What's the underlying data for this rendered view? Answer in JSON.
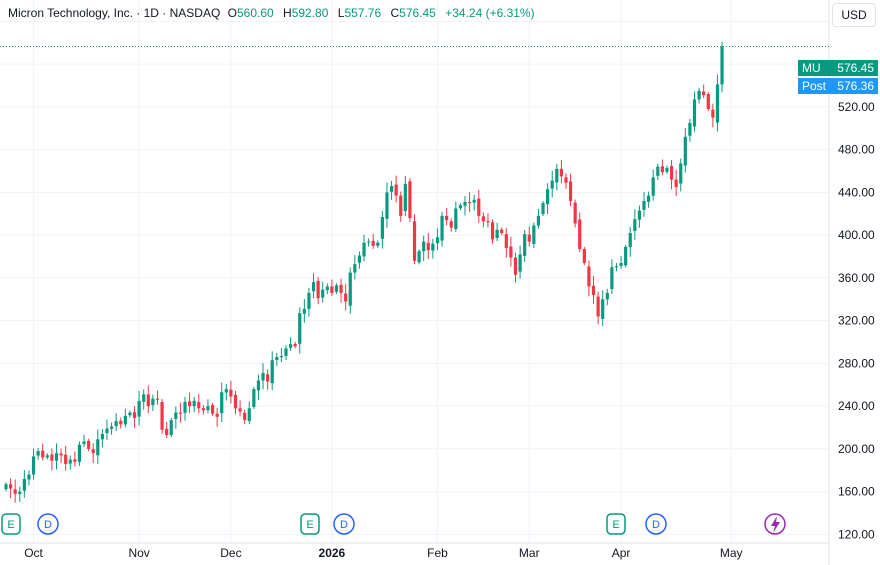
{
  "legend": {
    "symbol": "Micron Technology, Inc. · 1D · NASDAQ",
    "o_label": "O",
    "o_value": "560.60",
    "h_label": "H",
    "h_value": "592.80",
    "l_label": "L",
    "l_value": "557.76",
    "c_label": "C",
    "c_value": "576.45",
    "change": "+34.24 (+6.31%)"
  },
  "currency_button": "USD",
  "price_tags": {
    "last_label": "MU",
    "last_value": "576.45",
    "post_label": "Post",
    "post_value": "576.36"
  },
  "events": [
    "E",
    "D",
    "E",
    "D",
    "E",
    "D"
  ],
  "colors": {
    "up": "#089981",
    "down": "#f23645",
    "post": "#2196f3",
    "grid": "#f0f3fa"
  },
  "chart_data": {
    "type": "candlestick",
    "title": "Micron Technology, Inc. · 1D · NASDAQ",
    "y_ticks": [
      120,
      160,
      200,
      240,
      280,
      320,
      360,
      400,
      440,
      480,
      520,
      560,
      600
    ],
    "y_tick_labels": [
      "120.00",
      "160.00",
      "200.00",
      "240.00",
      "280.00",
      "320.00",
      "360.00",
      "400.00",
      "440.00",
      "480.00",
      "520.00",
      "",
      "600.00"
    ],
    "ylim": [
      112,
      620
    ],
    "x_tick_labels": [
      "Oct",
      "Nov",
      "Dec",
      "2026",
      "Feb",
      "Mar",
      "Apr",
      "May"
    ],
    "x_tick_index": [
      6,
      29,
      49,
      71,
      94,
      114,
      134,
      158
    ],
    "last_price": 576.45,
    "grid": true,
    "closes": [
      167,
      163,
      158,
      160,
      172,
      176,
      193,
      198,
      192,
      194,
      189,
      196,
      194,
      186,
      190,
      188,
      204,
      207,
      200,
      196,
      209,
      214,
      219,
      221,
      226,
      223,
      231,
      234,
      229,
      245,
      251,
      240,
      247,
      246,
      218,
      213,
      227,
      234,
      233,
      244,
      240,
      245,
      238,
      236,
      240,
      233,
      230,
      253,
      256,
      249,
      238,
      235,
      227,
      238,
      256,
      264,
      271,
      263,
      283,
      286,
      287,
      294,
      298,
      296,
      327,
      331,
      346,
      356,
      341,
      349,
      352,
      346,
      353,
      346,
      338,
      365,
      373,
      381,
      393,
      394,
      390,
      393,
      417,
      440,
      446,
      437,
      418,
      448,
      416,
      376,
      385,
      394,
      386,
      392,
      398,
      418,
      414,
      407,
      425,
      428,
      431,
      430,
      433,
      418,
      413,
      412,
      396,
      405,
      402,
      388,
      379,
      363,
      382,
      401,
      394,
      409,
      418,
      430,
      443,
      451,
      462,
      455,
      449,
      432,
      411,
      387,
      374,
      352,
      344,
      324,
      340,
      346,
      370,
      371,
      374,
      389,
      402,
      415,
      423,
      432,
      437,
      454,
      464,
      459,
      463,
      452,
      445,
      467,
      492,
      505,
      527,
      535,
      531,
      518,
      510,
      541,
      576.45
    ]
  }
}
